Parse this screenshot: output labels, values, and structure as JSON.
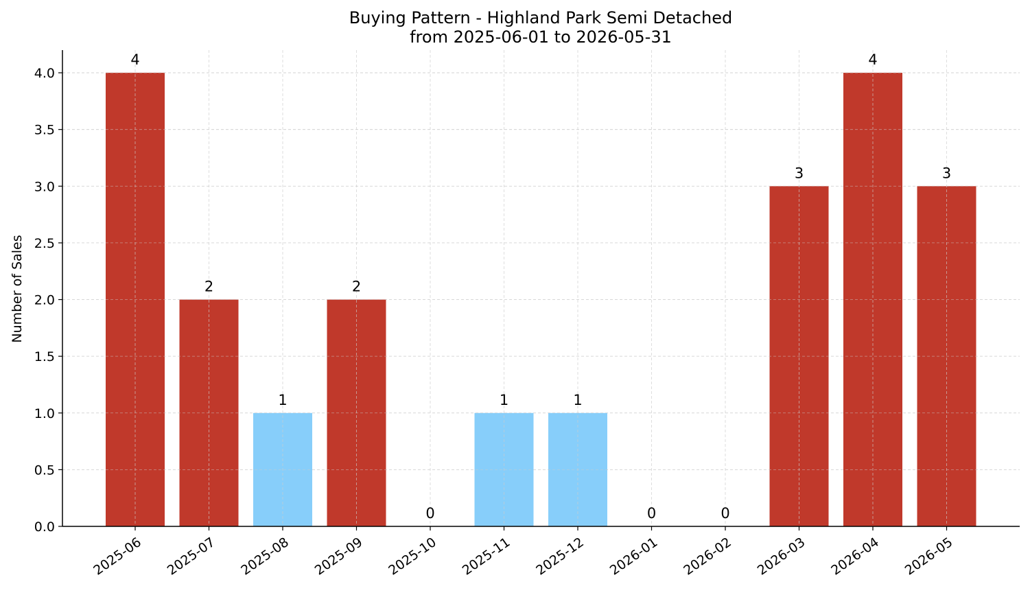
{
  "chart_data": {
    "type": "bar",
    "title": "Buying Pattern - Highland Park Semi Detached",
    "subtitle": "from 2025-06-01 to 2026-05-31",
    "xlabel": "",
    "ylabel": "Number of Sales",
    "categories": [
      "2025-06",
      "2025-07",
      "2025-08",
      "2025-09",
      "2025-10",
      "2025-11",
      "2025-12",
      "2026-01",
      "2026-02",
      "2026-03",
      "2026-04",
      "2026-05"
    ],
    "values": [
      4,
      2,
      1,
      2,
      0,
      1,
      1,
      0,
      0,
      3,
      4,
      3
    ],
    "data_labels": [
      "4",
      "2",
      "1",
      "2",
      "0",
      "1",
      "1",
      "0",
      "0",
      "3",
      "4",
      "3"
    ],
    "bar_colors": [
      "#c0392b",
      "#c0392b",
      "#87cefa",
      "#c0392b",
      "#87cefa",
      "#87cefa",
      "#87cefa",
      "#87cefa",
      "#87cefa",
      "#c0392b",
      "#c0392b",
      "#c0392b"
    ],
    "ylim": [
      0,
      4.2
    ],
    "yticks": [
      "0.0",
      "0.5",
      "1.0",
      "1.5",
      "2.0",
      "2.5",
      "3.0",
      "3.5",
      "4.0"
    ],
    "grid": true,
    "legend": "none"
  }
}
